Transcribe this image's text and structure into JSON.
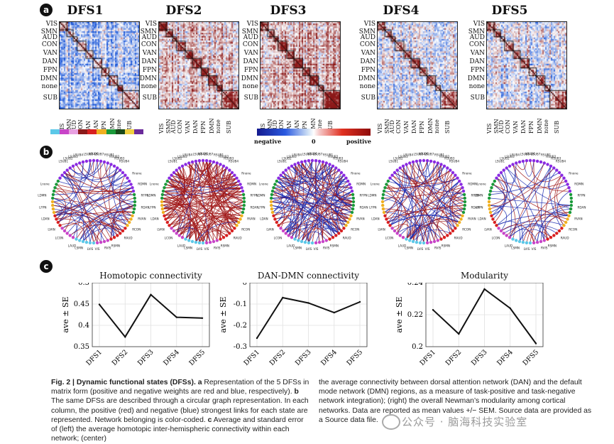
{
  "panels": {
    "a": "a",
    "b": "b",
    "c": "c"
  },
  "states": [
    "DFS1",
    "DFS2",
    "DFS3",
    "DFS4",
    "DFS5"
  ],
  "networks": [
    "VIS",
    "SMN",
    "AUD",
    "CON",
    "VAN",
    "DAN",
    "FPN",
    "DMN",
    "none",
    "SUB"
  ],
  "network_colors": [
    "#5cc8e8",
    "#c844c8",
    "#e8a0e0",
    "#8b1a1a",
    "#d82020",
    "#f0b020",
    "#1a9a3a",
    "#1a4a1a",
    "#f0d040",
    "#6a2a9a"
  ],
  "colorbar": {
    "negative": "negative",
    "zero": "0",
    "positive": "positive"
  },
  "circle_labels": {
    "top": [
      "LSUB1",
      "LSUB2",
      "LSUB3",
      "LSUB4",
      "LSUB5",
      "LSUB6",
      "LSUB7",
      "RSUB1",
      "RSUB2",
      "RSUB3",
      "RSUB4"
    ],
    "right": [
      "RDMN",
      "RFPN",
      "RDAN",
      "RVAN",
      "RCON",
      "RAUD"
    ],
    "bottom": [
      "RSMN",
      "RVIS",
      "VIS",
      "LVIS",
      "LSMN",
      "LAUD"
    ],
    "left": [
      "Lnone",
      "LDMN",
      "LFPN",
      "LDAN",
      "LVAN",
      "LCON"
    ],
    "right_top": "Rnone"
  },
  "charts": [
    {
      "title": "Homotopic connectivity",
      "ylabel": "ave ± SE",
      "chart_data": {
        "type": "line",
        "categories": [
          "DFS1",
          "DFS2",
          "DFS3",
          "DFS4",
          "DFS5"
        ],
        "values": [
          0.449,
          0.373,
          0.472,
          0.419,
          0.417
        ],
        "ylim": [
          0.35,
          0.5
        ],
        "yticks": [
          "0.35",
          "0.4",
          "0.45",
          "0.5"
        ],
        "grid": true
      }
    },
    {
      "title": "DAN-DMN connectivity",
      "ylabel": "ave ± SE",
      "chart_data": {
        "type": "line",
        "categories": [
          "DFS1",
          "DFS2",
          "DFS3",
          "DFS4",
          "DFS5"
        ],
        "values": [
          -0.26,
          -0.07,
          -0.095,
          -0.14,
          -0.09
        ],
        "ylim": [
          -0.3,
          0
        ],
        "yticks": [
          "-0.3",
          "-0.2",
          "-0.1",
          "0"
        ],
        "grid": true
      }
    },
    {
      "title": "Modularity",
      "ylabel": "ave ± SE",
      "chart_data": {
        "type": "line",
        "categories": [
          "DFS1",
          "DFS2",
          "DFS3",
          "DFS4",
          "DFS5"
        ],
        "values": [
          0.223,
          0.208,
          0.236,
          0.224,
          0.202
        ],
        "ylim": [
          0.2,
          0.24
        ],
        "yticks": [
          "0.2",
          "0.22",
          "0.24"
        ],
        "grid": true
      }
    }
  ],
  "caption": {
    "fig_label": "Fig. 2 | Dynamic functional states (DFSs).",
    "col1_a": "a",
    "col1_a_text": " Representation of the 5 DFSs in matrix form (positive and negative weights are red and blue, respectively).",
    "col1_b": "b",
    "col1_b_text": " The same DFSs are described through a circular graph representation. In each column, the positive (red) and negative (blue) strongest links for each state are represented. Network belonging is color-coded.",
    "col1_c": "c",
    "col1_c_text": " Average and standard error of (left) the average homotopic inter-hemispheric connectivity within each network; (center)",
    "col2_text": "the average connectivity between dorsal attention network (DAN) and the default mode network (DMN) regions, as a measure of task-positive and task-negative network integration); (right) the overall Newman’s modularity among cortical networks. Data are reported as mean values +/− SEM. Source data are provided as a Source data file."
  },
  "watermark": "公众号 · 脑海科技实验室"
}
